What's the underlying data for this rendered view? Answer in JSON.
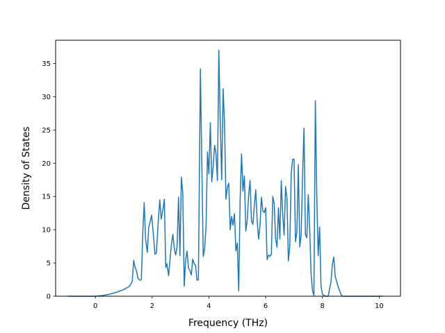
{
  "chart_data": {
    "type": "line",
    "title": "",
    "xlabel": "Frequency (THz)",
    "ylabel": "Density of States",
    "xlim": [
      -1.4,
      10.75
    ],
    "ylim": [
      0,
      38.5
    ],
    "xticks": [
      0,
      2,
      4,
      6,
      8,
      10
    ],
    "yticks": [
      0,
      5,
      10,
      15,
      20,
      25,
      30,
      35
    ],
    "grid": false,
    "legend": "none",
    "series": [
      {
        "color": "#1f77b4",
        "points": [
          [
            -0.95,
            0.0
          ],
          [
            0.0,
            0.0
          ],
          [
            0.25,
            0.1
          ],
          [
            0.5,
            0.3
          ],
          [
            0.75,
            0.6
          ],
          [
            1.0,
            1.0
          ],
          [
            1.2,
            1.5
          ],
          [
            1.3,
            2.2
          ],
          [
            1.35,
            5.4
          ],
          [
            1.4,
            4.3
          ],
          [
            1.45,
            3.8
          ],
          [
            1.5,
            2.7
          ],
          [
            1.57,
            2.4
          ],
          [
            1.62,
            2.5
          ],
          [
            1.67,
            9.5
          ],
          [
            1.72,
            14.1
          ],
          [
            1.77,
            8.5
          ],
          [
            1.83,
            6.6
          ],
          [
            1.88,
            10.4
          ],
          [
            1.93,
            11.2
          ],
          [
            1.98,
            12.2
          ],
          [
            2.05,
            9.0
          ],
          [
            2.1,
            6.3
          ],
          [
            2.15,
            6.5
          ],
          [
            2.22,
            11.6
          ],
          [
            2.27,
            14.5
          ],
          [
            2.32,
            11.6
          ],
          [
            2.38,
            13.0
          ],
          [
            2.43,
            14.6
          ],
          [
            2.48,
            4.3
          ],
          [
            2.52,
            4.9
          ],
          [
            2.58,
            3.1
          ],
          [
            2.63,
            5.5
          ],
          [
            2.68,
            7.8
          ],
          [
            2.73,
            9.3
          ],
          [
            2.78,
            7.2
          ],
          [
            2.83,
            6.2
          ],
          [
            2.88,
            7.5
          ],
          [
            2.93,
            14.9
          ],
          [
            2.98,
            6.1
          ],
          [
            3.03,
            17.9
          ],
          [
            3.08,
            15.5
          ],
          [
            3.13,
            1.5
          ],
          [
            3.18,
            5.5
          ],
          [
            3.23,
            6.8
          ],
          [
            3.28,
            4.2
          ],
          [
            3.33,
            3.9
          ],
          [
            3.38,
            3.2
          ],
          [
            3.43,
            5.6
          ],
          [
            3.48,
            4.9
          ],
          [
            3.53,
            4.6
          ],
          [
            3.58,
            2.4
          ],
          [
            3.63,
            2.5
          ],
          [
            3.7,
            34.2
          ],
          [
            3.75,
            20.0
          ],
          [
            3.8,
            6.0
          ],
          [
            3.85,
            7.2
          ],
          [
            3.9,
            10.5
          ],
          [
            3.95,
            21.7
          ],
          [
            4.0,
            18.4
          ],
          [
            4.05,
            26.1
          ],
          [
            4.1,
            17.2
          ],
          [
            4.15,
            19.5
          ],
          [
            4.2,
            22.7
          ],
          [
            4.25,
            21.4
          ],
          [
            4.3,
            17.4
          ],
          [
            4.35,
            37.0
          ],
          [
            4.4,
            26.2
          ],
          [
            4.45,
            17.5
          ],
          [
            4.5,
            31.2
          ],
          [
            4.55,
            26.0
          ],
          [
            4.6,
            14.6
          ],
          [
            4.65,
            16.4
          ],
          [
            4.7,
            17.0
          ],
          [
            4.75,
            10.0
          ],
          [
            4.8,
            12.0
          ],
          [
            4.85,
            10.7
          ],
          [
            4.9,
            12.4
          ],
          [
            4.95,
            6.8
          ],
          [
            5.0,
            8.0
          ],
          [
            5.05,
            0.8
          ],
          [
            5.1,
            14.5
          ],
          [
            5.15,
            21.4
          ],
          [
            5.2,
            15.8
          ],
          [
            5.25,
            18.1
          ],
          [
            5.3,
            9.8
          ],
          [
            5.35,
            11.4
          ],
          [
            5.4,
            15.2
          ],
          [
            5.45,
            17.4
          ],
          [
            5.5,
            11.3
          ],
          [
            5.55,
            10.8
          ],
          [
            5.6,
            13.6
          ],
          [
            5.65,
            16.0
          ],
          [
            5.7,
            11.4
          ],
          [
            5.75,
            8.6
          ],
          [
            5.8,
            10.6
          ],
          [
            5.85,
            14.9
          ],
          [
            5.9,
            12.8
          ],
          [
            5.95,
            12.6
          ],
          [
            6.0,
            13.3
          ],
          [
            6.05,
            5.5
          ],
          [
            6.1,
            6.2
          ],
          [
            6.15,
            6.0
          ],
          [
            6.2,
            6.3
          ],
          [
            6.25,
            15.0
          ],
          [
            6.3,
            14.0
          ],
          [
            6.35,
            8.6
          ],
          [
            6.4,
            7.4
          ],
          [
            6.45,
            13.3
          ],
          [
            6.5,
            8.6
          ],
          [
            6.55,
            17.4
          ],
          [
            6.6,
            12.3
          ],
          [
            6.65,
            9.2
          ],
          [
            6.7,
            16.5
          ],
          [
            6.75,
            14.7
          ],
          [
            6.8,
            5.3
          ],
          [
            6.85,
            7.5
          ],
          [
            6.9,
            18.5
          ],
          [
            6.95,
            20.6
          ],
          [
            7.0,
            20.6
          ],
          [
            7.05,
            8.2
          ],
          [
            7.1,
            9.7
          ],
          [
            7.15,
            19.8
          ],
          [
            7.2,
            7.4
          ],
          [
            7.25,
            9.3
          ],
          [
            7.3,
            18.2
          ],
          [
            7.35,
            25.3
          ],
          [
            7.4,
            9.3
          ],
          [
            7.45,
            8.8
          ],
          [
            7.5,
            15.3
          ],
          [
            7.55,
            10.2
          ],
          [
            7.6,
            3.4
          ],
          [
            7.65,
            0.8
          ],
          [
            7.7,
            0.1
          ],
          [
            7.75,
            29.4
          ],
          [
            7.8,
            15.2
          ],
          [
            7.85,
            6.1
          ],
          [
            7.9,
            10.4
          ],
          [
            7.95,
            1.5
          ],
          [
            8.0,
            0.3
          ],
          [
            8.1,
            0.0
          ],
          [
            8.2,
            0.0
          ],
          [
            8.3,
            2.1
          ],
          [
            8.35,
            4.8
          ],
          [
            8.4,
            5.9
          ],
          [
            8.45,
            3.0
          ],
          [
            8.55,
            1.5
          ],
          [
            8.65,
            0.3
          ],
          [
            8.7,
            0.0
          ],
          [
            9.1,
            0.0
          ],
          [
            10.1,
            0.0
          ]
        ]
      }
    ]
  }
}
